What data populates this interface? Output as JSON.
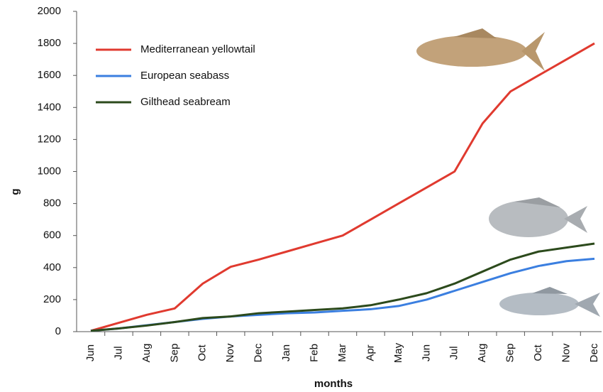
{
  "chart_data": {
    "type": "line",
    "x_label": "months",
    "y_label": "g",
    "categories": [
      "Jun",
      "Jul",
      "Aug",
      "Sep",
      "Oct",
      "Nov",
      "Dec",
      "Jan",
      "Feb",
      "Mar",
      "Apr",
      "May",
      "Jun",
      "Jul",
      "Aug",
      "Sep",
      "Oct",
      "Nov",
      "Dec"
    ],
    "series": [
      {
        "name": "Mediterranean yellowtail",
        "color": "#e03a2f",
        "values": [
          5,
          55,
          105,
          145,
          300,
          405,
          450,
          500,
          550,
          600,
          700,
          800,
          900,
          1000,
          1300,
          1500,
          1600,
          1700,
          1800
        ]
      },
      {
        "name": "European seabass",
        "color": "#3b7fe0",
        "values": [
          5,
          20,
          40,
          60,
          80,
          95,
          105,
          115,
          120,
          130,
          140,
          160,
          200,
          255,
          310,
          365,
          410,
          440,
          455
        ]
      },
      {
        "name": "Gilthead seabream",
        "color": "#2c4a1c",
        "values": [
          5,
          20,
          38,
          60,
          85,
          95,
          115,
          125,
          135,
          145,
          165,
          200,
          240,
          300,
          375,
          450,
          500,
          525,
          550
        ]
      }
    ],
    "ylim": [
      0,
      2000
    ],
    "yticks": [
      0,
      200,
      400,
      600,
      800,
      1000,
      1200,
      1400,
      1600,
      1800,
      2000
    ],
    "legend": "upper left"
  }
}
